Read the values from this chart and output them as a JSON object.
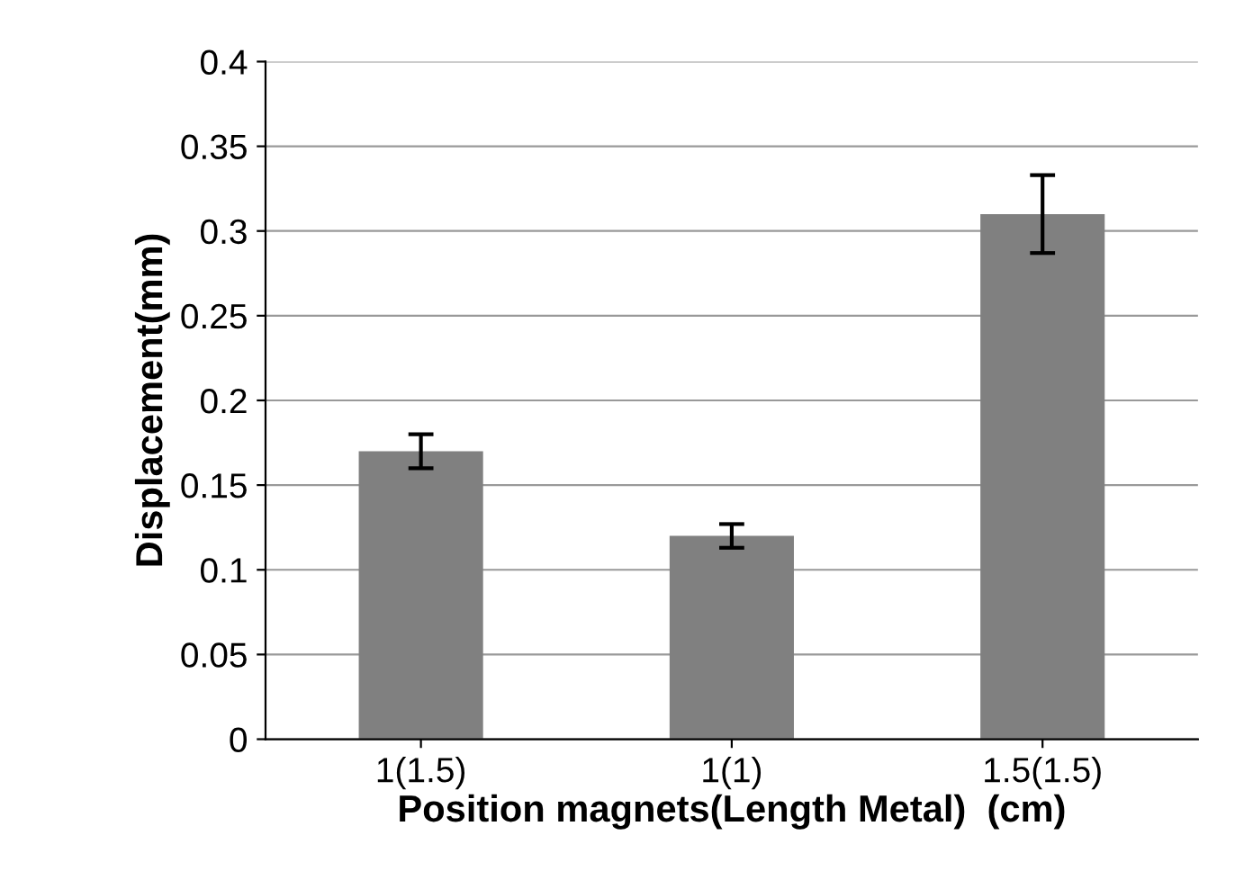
{
  "chart_data": {
    "type": "bar",
    "xlabel": "Position magnets(Length Metal)  (cm)",
    "ylabel": "Displacement(mm)",
    "categories": [
      "1(1.5)",
      "1(1)",
      "1.5(1.5)"
    ],
    "values": [
      0.17,
      0.12,
      0.31
    ],
    "errors": [
      0.01,
      0.007,
      0.023
    ],
    "color": "#808080",
    "ylim": [
      0,
      0.4
    ],
    "yticks": [
      0,
      0.05,
      0.1,
      0.15,
      0.2,
      0.25,
      0.3,
      0.35,
      0.4
    ],
    "grid": "y"
  }
}
